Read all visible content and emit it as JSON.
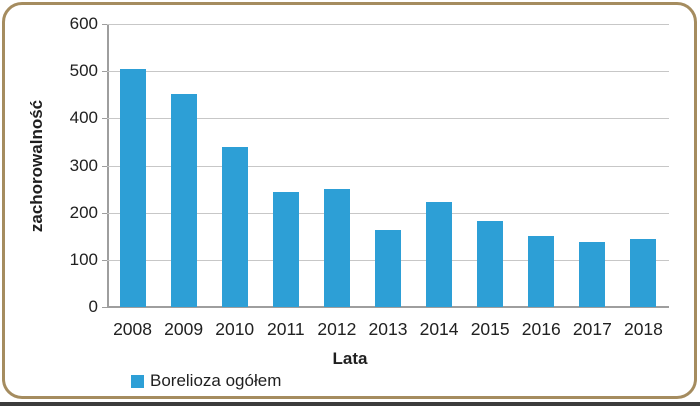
{
  "frame": {
    "border_color": "#a58c5f",
    "bottom_strip_color": "#3c3c3c",
    "background": "#ffffff"
  },
  "chart_data": {
    "type": "bar",
    "title": "",
    "categories": [
      "2008",
      "2009",
      "2010",
      "2011",
      "2012",
      "2013",
      "2014",
      "2015",
      "2016",
      "2017",
      "2018"
    ],
    "series": [
      {
        "name": "Borelioza ogółem",
        "values": [
          505,
          452,
          340,
          243,
          250,
          163,
          222,
          182,
          151,
          138,
          144
        ]
      }
    ],
    "xlabel": "Lata",
    "ylabel": "zachorowalność",
    "ylim": [
      0,
      600
    ],
    "yticks": [
      0,
      100,
      200,
      300,
      400,
      500,
      600
    ],
    "grid": true,
    "bar_color": "#2d9fd6",
    "gridline_color": "#c7c7c7",
    "axis_color": "#9e9e9e",
    "legend_position": "bottom-left"
  },
  "legend": {
    "label": "Borelioza ogółem",
    "swatch_color": "#2d9fd6"
  }
}
